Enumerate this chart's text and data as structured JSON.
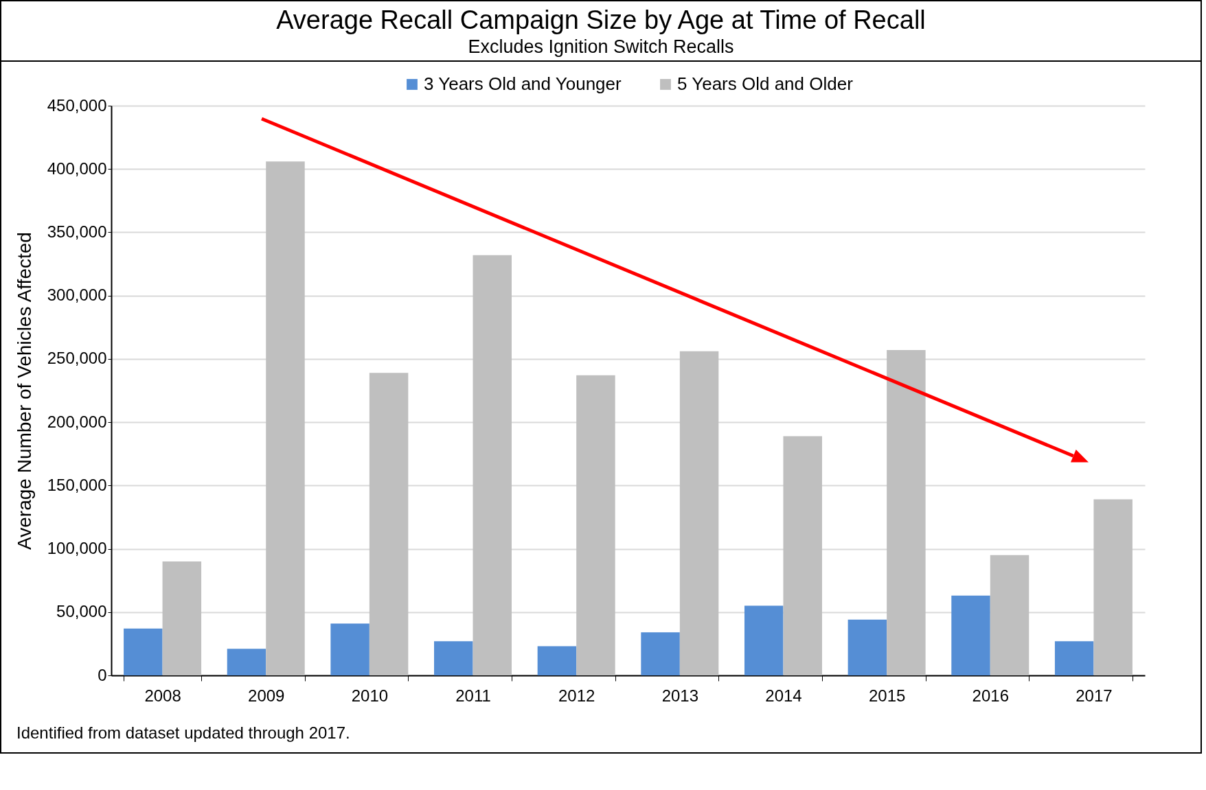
{
  "chart_data": {
    "type": "bar",
    "title": "Average Recall Campaign Size by Age at Time of Recall",
    "subtitle": "Excludes Ignition Switch Recalls",
    "ylabel": "Average Number of Vehicles Affected",
    "categories": [
      "2008",
      "2009",
      "2010",
      "2011",
      "2012",
      "2013",
      "2014",
      "2015",
      "2016",
      "2017"
    ],
    "series": [
      {
        "name": "3 Years Old and Younger",
        "color": "#558ed5",
        "values": [
          37000,
          21000,
          41000,
          27000,
          23000,
          34000,
          55000,
          44000,
          63000,
          27000
        ]
      },
      {
        "name": "5 Years Old and Older",
        "color": "#bfbfbf",
        "values": [
          90000,
          406000,
          239000,
          332000,
          237000,
          256000,
          189000,
          257000,
          95000,
          139000
        ]
      }
    ],
    "ylim": [
      0,
      450000
    ],
    "yticks": [
      0,
      {
        "value": 50000,
        "label": "50,000"
      },
      {
        "value": 100000,
        "label": "100,000"
      },
      {
        "value": 150000,
        "label": "150,000"
      },
      {
        "value": 200000,
        "label": "200,000"
      },
      {
        "value": 250000,
        "label": "250,000"
      },
      {
        "value": 300000,
        "label": "300,000"
      },
      {
        "value": 350000,
        "label": "350,000"
      },
      {
        "value": 400000,
        "label": "400,000"
      },
      {
        "value": 450000,
        "label": "450,000"
      }
    ],
    "grid": "y",
    "legend": "top",
    "annotations": [
      "Identified from dataset updated through 2017."
    ]
  }
}
